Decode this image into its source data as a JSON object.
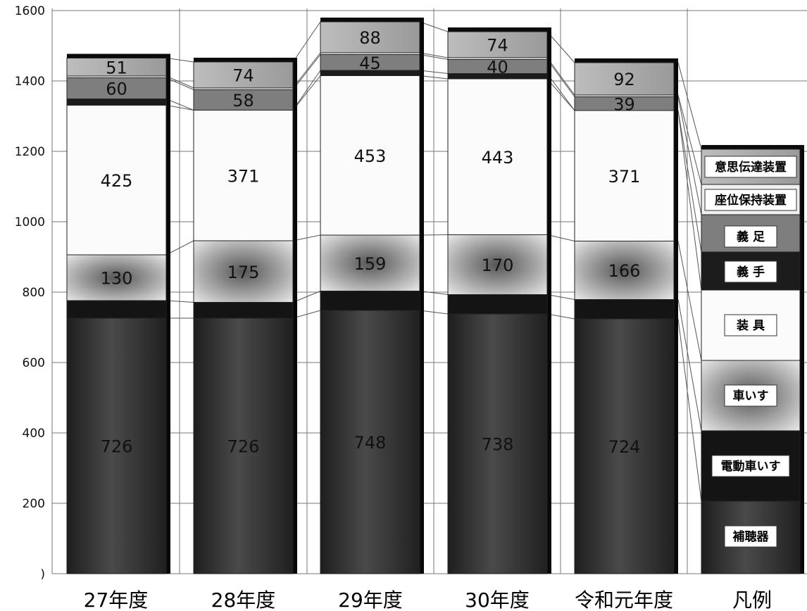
{
  "chart_data": {
    "type": "bar",
    "stacked": true,
    "title": "",
    "xlabel": "",
    "ylabel": "",
    "ylim": [
      0,
      1600
    ],
    "yticks": [
      0,
      200,
      400,
      600,
      800,
      1000,
      1200,
      1400,
      1600
    ],
    "ytick_labels": [
      ")",
      "200",
      "400",
      "600",
      "800",
      "1000",
      "1200",
      "1400",
      "1600"
    ],
    "grid": true,
    "categories": [
      "27年度",
      "28年度",
      "29年度",
      "30年度",
      "令和元年度"
    ],
    "series": [
      {
        "name": "補聴器",
        "values": [
          726,
          726,
          748,
          738,
          724
        ],
        "color": "#3a3a3a"
      },
      {
        "name": "電動車いす",
        "values": [
          50,
          45,
          55,
          55,
          55
        ],
        "color": "#161616"
      },
      {
        "name": "車いす",
        "values": [
          130,
          175,
          159,
          170,
          166
        ],
        "color": "#b0b0b0"
      },
      {
        "name": "装具",
        "values": [
          425,
          371,
          453,
          443,
          371
        ],
        "color": "#fafafa"
      },
      {
        "name": "義手",
        "values": [
          18,
          0,
          15,
          15,
          0
        ],
        "color": "#1c1c1c"
      },
      {
        "name": "義足",
        "values": [
          60,
          58,
          45,
          40,
          39
        ],
        "color": "#858585"
      },
      {
        "name": "座位保持装置",
        "values": [
          5,
          5,
          5,
          5,
          5
        ],
        "color": "#ececec"
      },
      {
        "name": "意思伝達装置",
        "values": [
          51,
          74,
          88,
          74,
          92
        ],
        "color": "#a8a8a8"
      }
    ],
    "data_labels": [
      [
        "726",
        null,
        "130",
        "425",
        null,
        "60",
        null,
        "51"
      ],
      [
        "726",
        null,
        "175",
        "371",
        null,
        "58",
        null,
        "74"
      ],
      [
        "748",
        null,
        "159",
        "453",
        null,
        "45",
        null,
        "88"
      ],
      [
        "738",
        null,
        "170",
        "443",
        null,
        "40",
        null,
        "74"
      ],
      [
        "724",
        null,
        "166",
        "371",
        null,
        "39",
        null,
        "92"
      ]
    ],
    "legend": {
      "title": "凡例",
      "placement": "right",
      "entries": [
        "意思伝達装置",
        "座位保持装置",
        "義 足",
        "義 手",
        "装 具",
        "車いす",
        "電動車いす",
        "補聴器"
      ]
    }
  }
}
